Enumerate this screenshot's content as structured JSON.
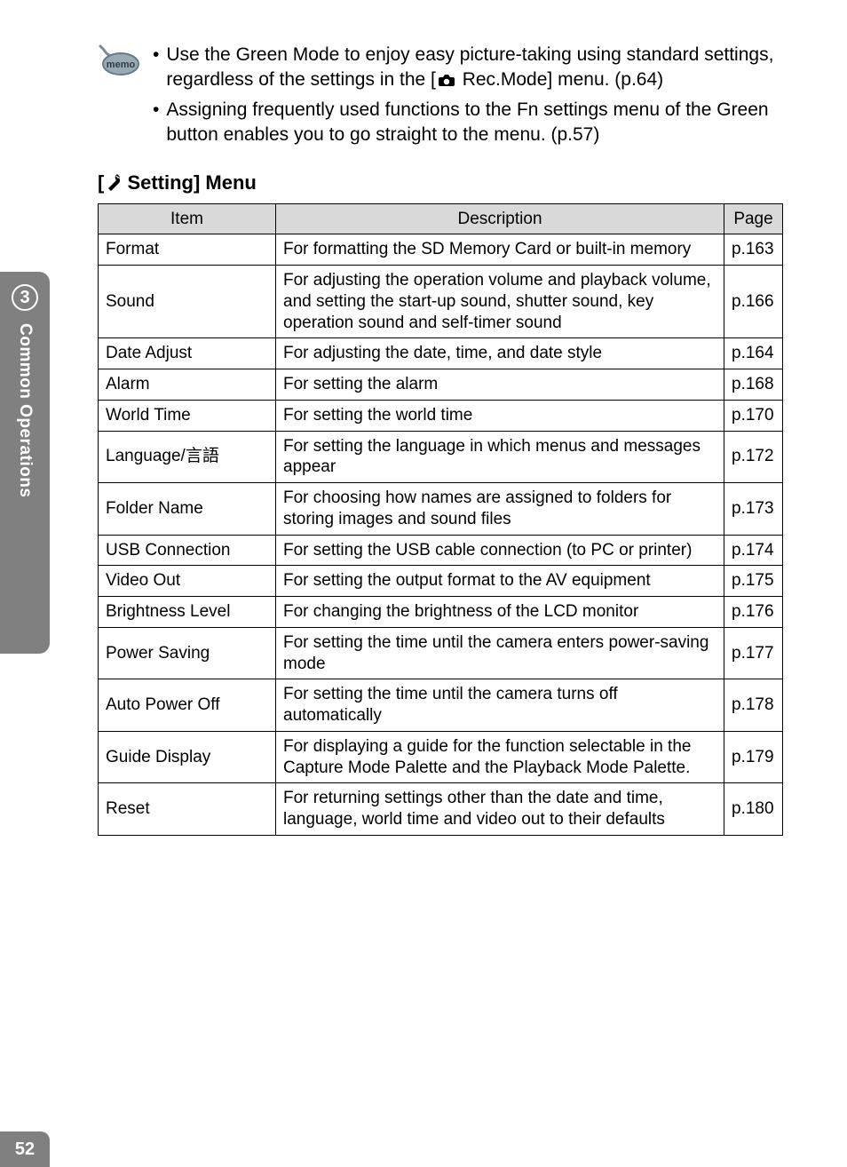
{
  "memo": {
    "items": [
      "Use the Green Mode to enjoy easy picture-taking using standard settings, regardless of the settings in the [",
      "Assigning frequently used functions to the Fn settings menu of the Green button enables you to go straight to the menu. (p.57)"
    ],
    "item1_tail": " Rec.Mode] menu. (p.64)"
  },
  "section_title_prefix": "[",
  "section_title_text": " Setting] Menu",
  "table": {
    "headers": {
      "item": "Item",
      "desc": "Description",
      "page": "Page"
    },
    "rows": [
      {
        "item": "Format",
        "desc": "For formatting the SD Memory Card or built-in memory",
        "page": "p.163"
      },
      {
        "item": "Sound",
        "desc": "For adjusting the operation volume and playback volume, and setting the start-up sound, shutter sound, key operation sound and self-timer sound",
        "page": "p.166"
      },
      {
        "item": "Date Adjust",
        "desc": "For adjusting the date, time, and date style",
        "page": "p.164"
      },
      {
        "item": "Alarm",
        "desc": "For setting the alarm",
        "page": "p.168"
      },
      {
        "item": "World Time",
        "desc": "For setting the world time",
        "page": "p.170"
      },
      {
        "item": "Language/言語",
        "desc": "For setting the language in which menus and messages appear",
        "page": "p.172"
      },
      {
        "item": "Folder Name",
        "desc": "For choosing how names are assigned to folders for storing images and sound files",
        "page": "p.173"
      },
      {
        "item": "USB Connection",
        "desc": "For setting the USB cable connection (to PC or printer)",
        "page": "p.174"
      },
      {
        "item": "Video Out",
        "desc": "For setting the output format to the AV equipment",
        "page": "p.175"
      },
      {
        "item": "Brightness Level",
        "desc": "For changing the brightness of the LCD monitor",
        "page": "p.176"
      },
      {
        "item": "Power Saving",
        "desc": "For setting the time until the camera enters power-saving mode",
        "page": "p.177"
      },
      {
        "item": "Auto Power Off",
        "desc": "For setting the time until the camera turns off automatically",
        "page": "p.178"
      },
      {
        "item": "Guide Display",
        "desc": "For displaying a guide for the function selectable in the Capture Mode Palette and the Playback Mode Palette.",
        "page": "p.179"
      },
      {
        "item": "Reset",
        "desc": "For returning settings other than the date and time, language, world time and video out to their defaults",
        "page": "p.180"
      }
    ]
  },
  "side": {
    "chapter_num": "3",
    "chapter_label": "Common Operations",
    "page_num": "52"
  },
  "colors": {
    "header_bg": "#d9d9d9",
    "tab_bg": "#808080",
    "text": "#000000",
    "white": "#ffffff"
  }
}
